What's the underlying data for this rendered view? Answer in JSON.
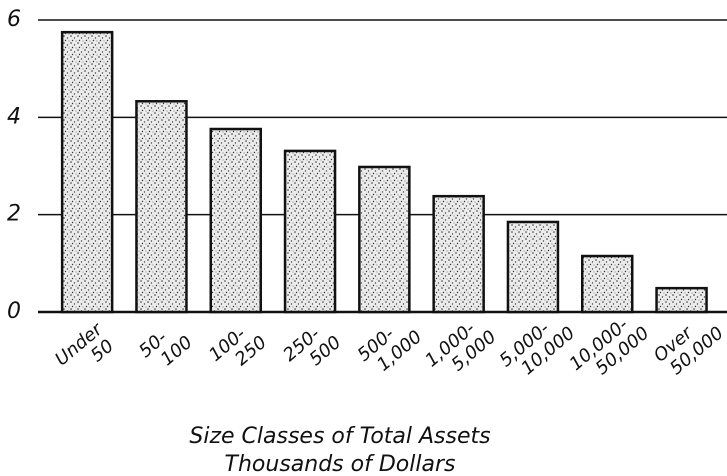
{
  "chart_data": {
    "type": "bar",
    "categories": [
      [
        "Under",
        "50"
      ],
      [
        "50-",
        "100"
      ],
      [
        "100-",
        "250"
      ],
      [
        "250-",
        "500"
      ],
      [
        "500-",
        "1,000"
      ],
      [
        "1,000-",
        "5,000"
      ],
      [
        "5,000-",
        "10,000"
      ],
      [
        "10,000-",
        "50,000"
      ],
      [
        "Over",
        "50,000"
      ]
    ],
    "values": [
      5.75,
      4.33,
      3.76,
      3.31,
      2.98,
      2.38,
      1.85,
      1.15,
      0.49
    ],
    "color": "#e6e6e6",
    "ylim": [
      0,
      6
    ],
    "yticks": [
      0,
      2,
      4,
      6
    ],
    "grid": true,
    "xlabel": [
      "Size Classes of Total Assets",
      "Thousands of Dollars"
    ]
  }
}
